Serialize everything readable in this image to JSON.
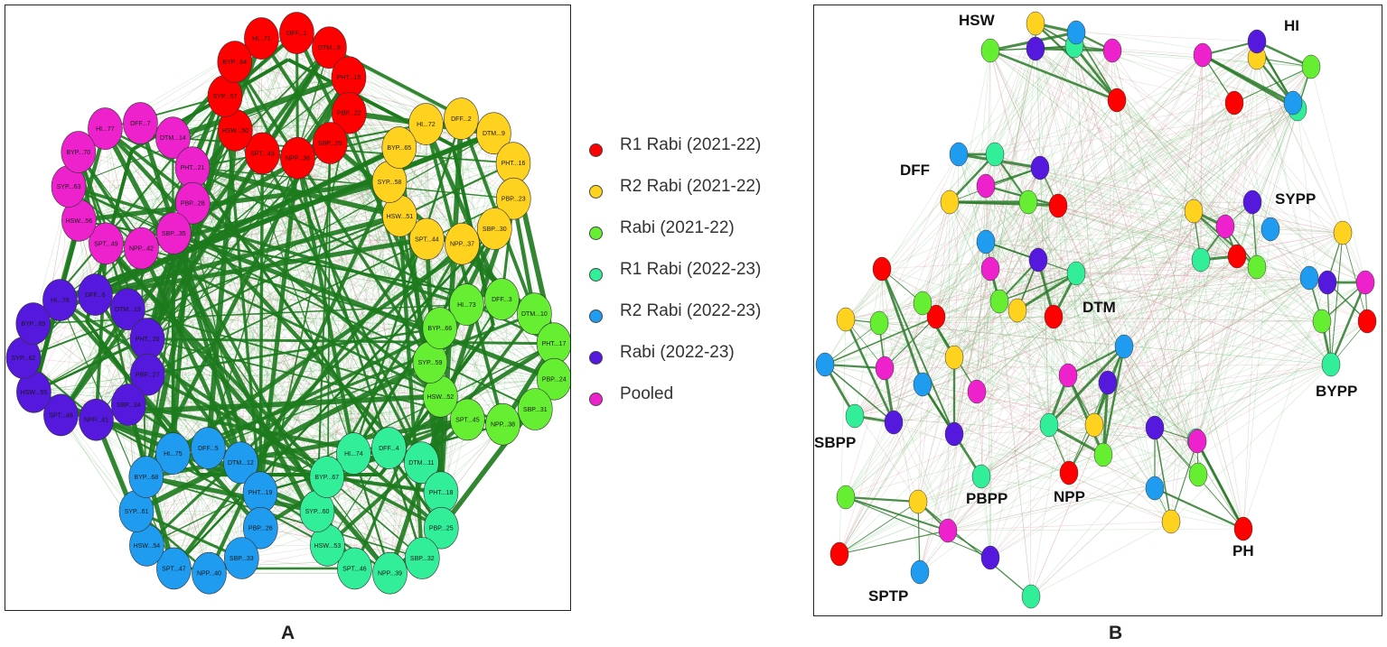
{
  "legend": [
    {
      "label": "R1 Rabi (2021-22)",
      "color": "#ff0000"
    },
    {
      "label": "R2 Rabi (2021-22)",
      "color": "#ffd21f"
    },
    {
      "label": "Rabi (2021-22)",
      "color": "#66ee33"
    },
    {
      "label": "R1 Rabi (2022-23)",
      "color": "#33ee99"
    },
    {
      "label": "R2 Rabi (2022-23)",
      "color": "#1f9cf0"
    },
    {
      "label": "Rabi (2022-23)",
      "color": "#5518dd"
    },
    {
      "label": "Pooled",
      "color": "#ee22cc"
    }
  ],
  "panel_labels": {
    "a": "A",
    "b": "B"
  },
  "panelA": {
    "clusters": [
      {
        "env": 0,
        "labels": [
          "HI...71",
          "DFF...1",
          "DTM...8",
          "PHT...15",
          "PBP...22",
          "SBP...29",
          "NPP...36",
          "SPT...43",
          "HSW...50",
          "SYP...57",
          "BYP...64"
        ]
      },
      {
        "env": 1,
        "labels": [
          "HI...72",
          "DFF...2",
          "DTM...9",
          "PHT...16",
          "PBP...23",
          "SBP...30",
          "NPP...37",
          "SPT...44",
          "HSW...51",
          "SYP...58",
          "BYP...65"
        ]
      },
      {
        "env": 2,
        "labels": [
          "HI...73",
          "DFF...3",
          "DTM...10",
          "PHT...17",
          "PBP...24",
          "SBP...31",
          "NPP...38",
          "SPT...45",
          "HSW...52",
          "SYP...59",
          "BYP...66"
        ]
      },
      {
        "env": 3,
        "labels": [
          "HI...74",
          "DFF...4",
          "DTM...11",
          "PHT...18",
          "PBP...25",
          "SBP...32",
          "NPP...39",
          "SPT...46",
          "HSW...53",
          "SYP...60",
          "BYP...67"
        ]
      },
      {
        "env": 4,
        "labels": [
          "HI...75",
          "DFF...5",
          "DTM...12",
          "PHT...19",
          "PBP...26",
          "SBP...33",
          "NPP...40",
          "SPT...47",
          "HSW...54",
          "SYP...61",
          "BYP...68"
        ]
      },
      {
        "env": 5,
        "labels": [
          "HI...76",
          "DFF...6",
          "DTM...13",
          "PHT...20",
          "PBP...27",
          "SBP...34",
          "NPP...41",
          "SPT...48",
          "HSW...55",
          "SYP...62",
          "BYP...69"
        ]
      },
      {
        "env": 6,
        "labels": [
          "HI...77",
          "DFF...7",
          "DTM...14",
          "PHT...21",
          "PBP...28",
          "SBP...35",
          "NPP...42",
          "SPT...49",
          "HSW...56",
          "SYP...63",
          "BYP...70"
        ]
      }
    ]
  },
  "panelB": {
    "groups": [
      {
        "name": "HSW"
      },
      {
        "name": "HI"
      },
      {
        "name": "DFF"
      },
      {
        "name": "SYPP"
      },
      {
        "name": "DTM"
      },
      {
        "name": "SBPP"
      },
      {
        "name": "BYPP"
      },
      {
        "name": "PBPP"
      },
      {
        "name": "NPP"
      },
      {
        "name": "PH"
      },
      {
        "name": "SPTP"
      }
    ]
  }
}
